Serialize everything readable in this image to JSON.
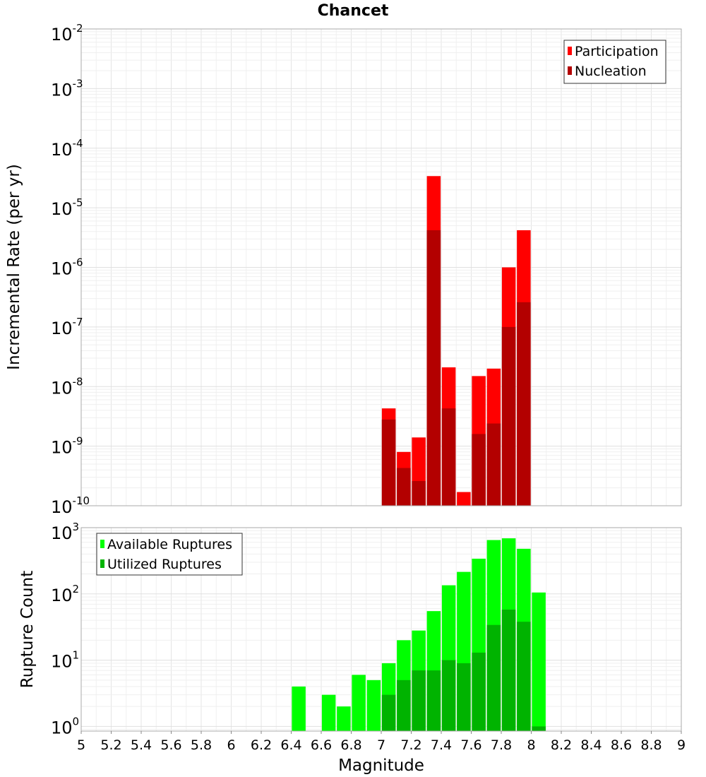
{
  "chart_data": [
    {
      "type": "bar",
      "title": "Chancet",
      "xlabel": "",
      "ylabel": "Incremental Rate (per yr)",
      "xlim": [
        5,
        9
      ],
      "ylim": [
        1e-10,
        0.01
      ],
      "yscale": "log",
      "y_tick_labels": [
        {
          "base": "10",
          "exp": "-10",
          "value": 1e-10
        },
        {
          "base": "10",
          "exp": "-9",
          "value": 1e-09
        },
        {
          "base": "10",
          "exp": "-8",
          "value": 1e-08
        },
        {
          "base": "10",
          "exp": "-7",
          "value": 1e-07
        },
        {
          "base": "10",
          "exp": "-6",
          "value": 1e-06
        },
        {
          "base": "10",
          "exp": "-5",
          "value": 1e-05
        },
        {
          "base": "10",
          "exp": "-4",
          "value": 0.0001
        },
        {
          "base": "10",
          "exp": "-3",
          "value": 0.001
        },
        {
          "base": "10",
          "exp": "-2",
          "value": 0.01
        }
      ],
      "grid": true,
      "legend_position": "top-right",
      "series": [
        {
          "name": "Participation",
          "color": "#ff0000",
          "x": [
            7.05,
            7.15,
            7.25,
            7.35,
            7.45,
            7.55,
            7.65,
            7.75,
            7.85,
            7.95
          ],
          "values": [
            4.3e-09,
            8e-10,
            1.4e-09,
            3.4e-05,
            2.1e-08,
            1.7e-10,
            1.5e-08,
            2e-08,
            1e-06,
            4.2e-06
          ]
        },
        {
          "name": "Nucleation",
          "color": "#b30000",
          "x": [
            7.05,
            7.15,
            7.25,
            7.35,
            7.45,
            7.55,
            7.65,
            7.75,
            7.85,
            7.95
          ],
          "values": [
            2.8e-09,
            4.3e-10,
            2.6e-10,
            4.2e-06,
            4.3e-09,
            0,
            1.6e-09,
            2.4e-09,
            1e-07,
            2.6e-07
          ]
        }
      ]
    },
    {
      "type": "bar",
      "title": "",
      "xlabel": "Magnitude",
      "ylabel": "Rupture Count",
      "xlim": [
        5,
        9
      ],
      "ylim": [
        0.85,
        1000
      ],
      "yscale": "log",
      "x_ticks": [
        "5",
        "5.2",
        "5.4",
        "5.6",
        "5.8",
        "6",
        "6.2",
        "6.4",
        "6.6",
        "6.8",
        "7",
        "7.2",
        "7.4",
        "7.6",
        "7.8",
        "8",
        "8.2",
        "8.4",
        "8.6",
        "8.8",
        "9"
      ],
      "y_tick_labels": [
        {
          "base": "10",
          "exp": "0",
          "value": 1
        },
        {
          "base": "10",
          "exp": "1",
          "value": 10
        },
        {
          "base": "10",
          "exp": "2",
          "value": 100
        },
        {
          "base": "10",
          "exp": "3",
          "value": 1000
        }
      ],
      "grid": true,
      "legend_position": "top-left",
      "series": [
        {
          "name": "Available Ruptures",
          "color": "#00ff00",
          "x": [
            6.45,
            6.65,
            6.75,
            6.85,
            6.95,
            7.05,
            7.15,
            7.25,
            7.35,
            7.45,
            7.55,
            7.65,
            7.75,
            7.85,
            7.95,
            8.05
          ],
          "values": [
            4,
            3,
            2,
            6,
            5,
            9,
            20,
            28,
            55,
            135,
            215,
            340,
            650,
            690,
            480,
            105
          ]
        },
        {
          "name": "Utilized Ruptures",
          "color": "#00b300",
          "x": [
            7.05,
            7.15,
            7.25,
            7.35,
            7.45,
            7.55,
            7.65,
            7.75,
            7.85,
            7.95,
            8.05
          ],
          "values": [
            3,
            5,
            7,
            7,
            10,
            9,
            13,
            34,
            58,
            38,
            1
          ]
        }
      ]
    }
  ]
}
